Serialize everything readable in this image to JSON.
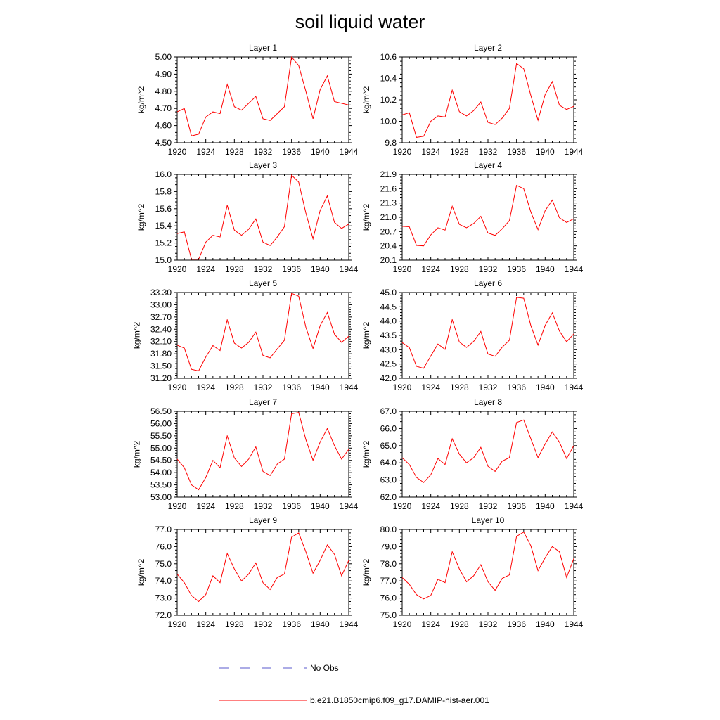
{
  "figure": {
    "title": "soil liquid water",
    "legend": {
      "entries": [
        {
          "label": "No Obs",
          "color": "#5a5acd",
          "style": "dashed"
        },
        {
          "label": "b.e21.B1850cmip6.f09_g17.DAMIP-hist-aer.001",
          "color": "#ff0000",
          "style": "solid"
        }
      ]
    }
  },
  "chart_data": [
    {
      "type": "line",
      "title": "Layer 1",
      "ylabel": "kg/m^2",
      "xlim": [
        1920,
        1944
      ],
      "x_ticks": [
        "1920",
        "1924",
        "1928",
        "1932",
        "1936",
        "1940",
        "1944"
      ],
      "ylim": [
        4.5,
        5.0
      ],
      "y_ticks": [
        "4.50",
        "4.60",
        "4.70",
        "4.80",
        "4.90",
        "5.00"
      ],
      "x": [
        1920,
        1921,
        1922,
        1923,
        1924,
        1925,
        1926,
        1927,
        1928,
        1929,
        1930,
        1931,
        1932,
        1933,
        1934,
        1935,
        1936,
        1937,
        1938,
        1939,
        1940,
        1941,
        1942,
        1943,
        1944
      ],
      "series": [
        {
          "values": [
            4.68,
            4.7,
            4.54,
            4.55,
            4.65,
            4.68,
            4.67,
            4.84,
            4.71,
            4.69,
            4.73,
            4.77,
            4.64,
            4.63,
            4.67,
            4.71,
            5.0,
            4.95,
            4.8,
            4.64,
            4.81,
            4.89,
            4.74,
            4.73,
            4.72
          ],
          "color": "#ff0000"
        }
      ]
    },
    {
      "type": "line",
      "title": "Layer 2",
      "ylabel": "kg/m^2",
      "xlim": [
        1920,
        1944
      ],
      "x_ticks": [
        "1920",
        "1924",
        "1928",
        "1932",
        "1936",
        "1940",
        "1944"
      ],
      "ylim": [
        9.8,
        10.6
      ],
      "y_ticks": [
        "9.8",
        "10.0",
        "10.2",
        "10.4",
        "10.6"
      ],
      "x": [
        1920,
        1921,
        1922,
        1923,
        1924,
        1925,
        1926,
        1927,
        1928,
        1929,
        1930,
        1931,
        1932,
        1933,
        1934,
        1935,
        1936,
        1937,
        1938,
        1939,
        1940,
        1941,
        1942,
        1943,
        1944
      ],
      "series": [
        {
          "values": [
            10.06,
            10.08,
            9.85,
            9.86,
            10.0,
            10.05,
            10.04,
            10.29,
            10.09,
            10.05,
            10.1,
            10.18,
            9.99,
            9.97,
            10.03,
            10.12,
            10.54,
            10.49,
            10.24,
            10.01,
            10.25,
            10.37,
            10.15,
            10.11,
            10.14
          ],
          "color": "#ff0000"
        }
      ]
    },
    {
      "type": "line",
      "title": "Layer 3",
      "ylabel": "kg/m^2",
      "xlim": [
        1920,
        1944
      ],
      "x_ticks": [
        "1920",
        "1924",
        "1928",
        "1932",
        "1936",
        "1940",
        "1944"
      ],
      "ylim": [
        15.0,
        16.0
      ],
      "y_ticks": [
        "15.0",
        "15.2",
        "15.4",
        "15.6",
        "15.8",
        "16.0"
      ],
      "x": [
        1920,
        1921,
        1922,
        1923,
        1924,
        1925,
        1926,
        1927,
        1928,
        1929,
        1930,
        1931,
        1932,
        1933,
        1934,
        1935,
        1936,
        1937,
        1938,
        1939,
        1940,
        1941,
        1942,
        1943,
        1944
      ],
      "series": [
        {
          "values": [
            15.31,
            15.33,
            15.01,
            15.01,
            15.21,
            15.29,
            15.27,
            15.64,
            15.35,
            15.29,
            15.36,
            15.48,
            15.21,
            15.17,
            15.27,
            15.39,
            15.99,
            15.91,
            15.55,
            15.25,
            15.58,
            15.75,
            15.44,
            15.37,
            15.42
          ],
          "color": "#ff0000"
        }
      ]
    },
    {
      "type": "line",
      "title": "Layer 4",
      "ylabel": "kg/m^2",
      "xlim": [
        1920,
        1944
      ],
      "x_ticks": [
        "1920",
        "1924",
        "1928",
        "1932",
        "1936",
        "1940",
        "1944"
      ],
      "ylim": [
        20.1,
        21.9
      ],
      "y_ticks": [
        "20.1",
        "20.4",
        "20.7",
        "21.0",
        "21.3",
        "21.6",
        "21.9"
      ],
      "x": [
        1920,
        1921,
        1922,
        1923,
        1924,
        1925,
        1926,
        1927,
        1928,
        1929,
        1930,
        1931,
        1932,
        1933,
        1934,
        1935,
        1936,
        1937,
        1938,
        1939,
        1940,
        1941,
        1942,
        1943,
        1944
      ],
      "series": [
        {
          "values": [
            20.81,
            20.8,
            20.41,
            20.4,
            20.63,
            20.78,
            20.73,
            21.23,
            20.85,
            20.78,
            20.87,
            21.02,
            20.67,
            20.62,
            20.76,
            20.93,
            21.67,
            21.6,
            21.11,
            20.74,
            21.14,
            21.36,
            20.99,
            20.89,
            20.97
          ],
          "color": "#ff0000"
        }
      ]
    },
    {
      "type": "line",
      "title": "Layer 5",
      "ylabel": "kg/m^2",
      "xlim": [
        1920,
        1944
      ],
      "x_ticks": [
        "1920",
        "1924",
        "1928",
        "1932",
        "1936",
        "1940",
        "1944"
      ],
      "ylim": [
        31.2,
        33.3
      ],
      "y_ticks": [
        "31.20",
        "31.50",
        "31.80",
        "32.10",
        "32.40",
        "32.70",
        "33.00",
        "33.30"
      ],
      "x": [
        1920,
        1921,
        1922,
        1923,
        1924,
        1925,
        1926,
        1927,
        1928,
        1929,
        1930,
        1931,
        1932,
        1933,
        1934,
        1935,
        1936,
        1937,
        1938,
        1939,
        1940,
        1941,
        1942,
        1943,
        1944
      ],
      "series": [
        {
          "values": [
            32.01,
            31.94,
            31.42,
            31.38,
            31.72,
            32.0,
            31.88,
            32.63,
            32.06,
            31.94,
            32.08,
            32.33,
            31.76,
            31.7,
            31.92,
            32.13,
            33.28,
            33.21,
            32.45,
            31.93,
            32.49,
            32.81,
            32.28,
            32.08,
            32.23
          ],
          "color": "#ff0000"
        }
      ]
    },
    {
      "type": "line",
      "title": "Layer 6",
      "ylabel": "kg/m^2",
      "xlim": [
        1920,
        1944
      ],
      "x_ticks": [
        "1920",
        "1924",
        "1928",
        "1932",
        "1936",
        "1940",
        "1944"
      ],
      "ylim": [
        42.0,
        45.0
      ],
      "y_ticks": [
        "42.0",
        "42.5",
        "43.0",
        "43.5",
        "44.0",
        "44.5",
        "45.0"
      ],
      "x": [
        1920,
        1921,
        1922,
        1923,
        1924,
        1925,
        1926,
        1927,
        1928,
        1929,
        1930,
        1931,
        1932,
        1933,
        1934,
        1935,
        1936,
        1937,
        1938,
        1939,
        1940,
        1941,
        1942,
        1943,
        1944
      ],
      "series": [
        {
          "values": [
            43.25,
            43.07,
            42.42,
            42.35,
            42.78,
            43.2,
            43.01,
            44.05,
            43.27,
            43.08,
            43.29,
            43.64,
            42.85,
            42.77,
            43.09,
            43.33,
            44.83,
            44.8,
            43.84,
            43.16,
            43.85,
            44.29,
            43.65,
            43.28,
            43.55
          ],
          "color": "#ff0000"
        }
      ]
    },
    {
      "type": "line",
      "title": "Layer 7",
      "ylabel": "kg/m^2",
      "xlim": [
        1920,
        1944
      ],
      "x_ticks": [
        "1920",
        "1924",
        "1928",
        "1932",
        "1936",
        "1940",
        "1944"
      ],
      "ylim": [
        53.0,
        56.5
      ],
      "y_ticks": [
        "53.00",
        "53.50",
        "54.00",
        "54.50",
        "55.00",
        "55.50",
        "56.00",
        "56.50"
      ],
      "x": [
        1920,
        1921,
        1922,
        1923,
        1924,
        1925,
        1926,
        1927,
        1928,
        1929,
        1930,
        1931,
        1932,
        1933,
        1934,
        1935,
        1936,
        1937,
        1938,
        1939,
        1940,
        1941,
        1942,
        1943,
        1944
      ],
      "series": [
        {
          "values": [
            54.55,
            54.2,
            53.5,
            53.3,
            53.8,
            54.5,
            54.2,
            55.5,
            54.6,
            54.25,
            54.55,
            55.05,
            54.05,
            53.88,
            54.35,
            54.55,
            56.4,
            56.45,
            55.35,
            54.5,
            55.25,
            55.8,
            55.1,
            54.55,
            54.95
          ],
          "color": "#ff0000"
        }
      ]
    },
    {
      "type": "line",
      "title": "Layer 8",
      "ylabel": "kg/m^2",
      "xlim": [
        1920,
        1944
      ],
      "x_ticks": [
        "1920",
        "1924",
        "1928",
        "1932",
        "1936",
        "1940",
        "1944"
      ],
      "ylim": [
        62.0,
        67.0
      ],
      "y_ticks": [
        "62.0",
        "63.0",
        "64.0",
        "65.0",
        "66.0",
        "67.0"
      ],
      "x": [
        1920,
        1921,
        1922,
        1923,
        1924,
        1925,
        1926,
        1927,
        1928,
        1929,
        1930,
        1931,
        1932,
        1933,
        1934,
        1935,
        1936,
        1937,
        1938,
        1939,
        1940,
        1941,
        1942,
        1943,
        1944
      ],
      "series": [
        {
          "values": [
            64.3,
            63.9,
            63.15,
            62.85,
            63.3,
            64.25,
            63.9,
            65.4,
            64.5,
            64.0,
            64.3,
            64.9,
            63.8,
            63.5,
            64.1,
            64.3,
            66.35,
            66.5,
            65.4,
            64.3,
            65.1,
            65.8,
            65.2,
            64.25,
            65.0
          ],
          "color": "#ff0000"
        }
      ]
    },
    {
      "type": "line",
      "title": "Layer 9",
      "ylabel": "kg/m^2",
      "xlim": [
        1920,
        1944
      ],
      "x_ticks": [
        "1920",
        "1924",
        "1928",
        "1932",
        "1936",
        "1940",
        "1944"
      ],
      "ylim": [
        72.0,
        77.0
      ],
      "y_ticks": [
        "72.0",
        "73.0",
        "74.0",
        "75.0",
        "76.0",
        "77.0"
      ],
      "x": [
        1920,
        1921,
        1922,
        1923,
        1924,
        1925,
        1926,
        1927,
        1928,
        1929,
        1930,
        1931,
        1932,
        1933,
        1934,
        1935,
        1936,
        1937,
        1938,
        1939,
        1940,
        1941,
        1942,
        1943,
        1944
      ],
      "series": [
        {
          "values": [
            74.4,
            73.9,
            73.15,
            72.8,
            73.2,
            74.3,
            73.9,
            75.6,
            74.7,
            74.0,
            74.4,
            75.05,
            73.9,
            73.5,
            74.2,
            74.4,
            76.55,
            76.8,
            75.7,
            74.45,
            75.2,
            76.1,
            75.55,
            74.3,
            75.2
          ],
          "color": "#ff0000"
        }
      ]
    },
    {
      "type": "line",
      "title": "Layer 10",
      "ylabel": "kg/m^2",
      "xlim": [
        1920,
        1944
      ],
      "x_ticks": [
        "1920",
        "1924",
        "1928",
        "1932",
        "1936",
        "1940",
        "1944"
      ],
      "ylim": [
        75.0,
        80.0
      ],
      "y_ticks": [
        "75.0",
        "76.0",
        "77.0",
        "78.0",
        "79.0",
        "80.0"
      ],
      "x": [
        1920,
        1921,
        1922,
        1923,
        1924,
        1925,
        1926,
        1927,
        1928,
        1929,
        1930,
        1931,
        1932,
        1933,
        1934,
        1935,
        1936,
        1937,
        1938,
        1939,
        1940,
        1941,
        1942,
        1943,
        1944
      ],
      "series": [
        {
          "values": [
            77.2,
            76.8,
            76.2,
            75.95,
            76.15,
            77.1,
            76.9,
            78.7,
            77.7,
            76.95,
            77.3,
            77.95,
            76.95,
            76.45,
            77.15,
            77.35,
            79.6,
            79.85,
            79.05,
            77.6,
            78.35,
            79.0,
            78.7,
            77.2,
            78.3
          ],
          "color": "#ff0000"
        }
      ]
    }
  ]
}
